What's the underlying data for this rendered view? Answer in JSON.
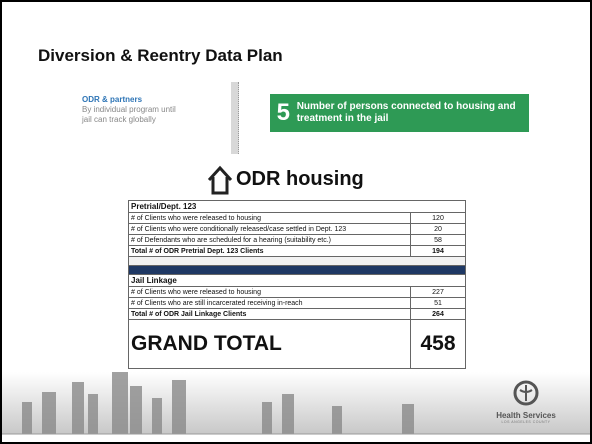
{
  "header": {
    "title": "Diversion & Reentry Data Plan"
  },
  "left_note": {
    "title": "ODR & partners",
    "lines": [
      "By individual program until",
      "jail can track globally"
    ]
  },
  "callout": {
    "number": "5",
    "text": "Number of persons connected to housing and treatment in the jail"
  },
  "section_title": "ODR housing",
  "table": {
    "pretrial": {
      "header": "Pretrial/Dept. 123",
      "rows": [
        {
          "label": "# of Clients who were released to housing",
          "value": "120"
        },
        {
          "label": "# of Clients who were conditionally released/case settled in Dept. 123",
          "value": "20"
        },
        {
          "label": "# of Defendants who are scheduled for a hearing (suitability etc.)",
          "value": "58"
        }
      ],
      "total": {
        "label": "Total # of ODR Pretrial Dept. 123 Clients",
        "value": "194"
      }
    },
    "jail": {
      "header": "Jail Linkage",
      "rows": [
        {
          "label": "# of Clients who were released to housing",
          "value": "227"
        },
        {
          "label": "# of Clients who are still incarcerated receiving in-reach",
          "value": "51"
        }
      ],
      "total": {
        "label": "Total # of ODR Jail Linkage Clients",
        "value": "264"
      }
    },
    "grand_total": {
      "label": "GRAND TOTAL",
      "value": "458"
    }
  },
  "footer": {
    "logo_text": "Health Services",
    "logo_subtext": "LOS ANGELES COUNTY"
  }
}
